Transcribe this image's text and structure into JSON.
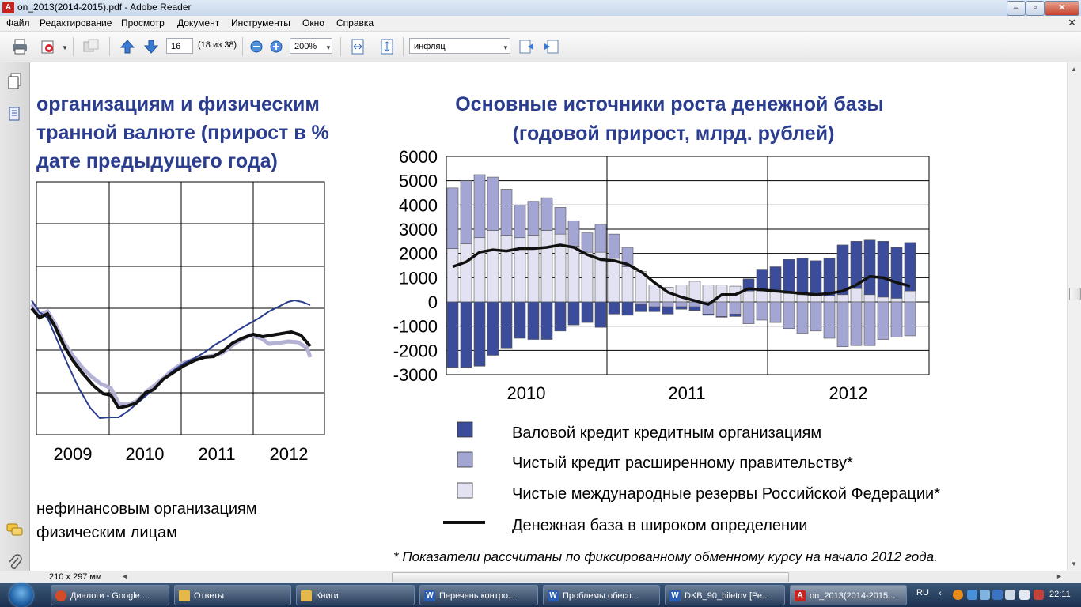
{
  "window": {
    "title": "on_2013(2014-2015).pdf - Adobe Reader"
  },
  "menu": [
    "Файл",
    "Редактирование",
    "Просмотр",
    "Документ",
    "Инструменты",
    "Окно",
    "Справка"
  ],
  "toolbar": {
    "page_number": "16",
    "page_count": "(18 из 38)",
    "zoom": "200%",
    "search": "инфляц"
  },
  "status": {
    "page_size": "210 x 297 мм"
  },
  "left_chart": {
    "title_lines": [
      "организациям и физическим",
      "транной валюте (прирост в %",
      "дате предыдущего года)"
    ],
    "x_labels": [
      "2009",
      "2010",
      "2011",
      "2012"
    ],
    "legend": [
      "нефинансовым организациям",
      "физическим лицам"
    ]
  },
  "chart_data": {
    "type": "bar",
    "title": "Основные источники роста денежной базы",
    "subtitle": "(годовой прирост, млрд. рублей)",
    "x_tick_labels": [
      "2010",
      "2011",
      "2012"
    ],
    "y_ticks": [
      "6000",
      "5000",
      "4000",
      "3000",
      "2000",
      "1000",
      "0",
      "-1000",
      "-2000",
      "-3000"
    ],
    "ylim": [
      -3000,
      6000
    ],
    "stacked": true,
    "series": [
      {
        "name": "Валовой кредит кредитным организациям",
        "color": "#3b4d9a",
        "values": [
          -2700,
          -2700,
          -2650,
          -2200,
          -1900,
          -1500,
          -1550,
          -1550,
          -1200,
          -950,
          -850,
          -1050,
          -500,
          -550,
          -300,
          -200,
          -300,
          -100,
          -150,
          -50,
          -30,
          -100,
          500,
          900,
          1050,
          1400,
          1500,
          1400,
          1550,
          2050,
          1950,
          2250,
          2300,
          2100,
          2000
        ]
      },
      {
        "name": "Чистый кредит расширенному  правительству*",
        "color": "#a3a6d2",
        "values": [
          2500,
          2600,
          2600,
          2200,
          1900,
          1350,
          1400,
          1350,
          1100,
          1050,
          800,
          1150,
          1000,
          800,
          -100,
          -200,
          -200,
          -200,
          -200,
          -500,
          -600,
          -500,
          -900,
          -750,
          -850,
          -1100,
          -1300,
          -1200,
          -1500,
          -1850,
          -1800,
          -1800,
          -1550,
          -1450,
          -1400
        ]
      },
      {
        "name": "Чистые международные резервы Российской Федерации*",
        "color": "#e2e2f2",
        "values": [
          2200,
          2400,
          2650,
          2950,
          2750,
          2650,
          2750,
          2950,
          2800,
          2300,
          2050,
          2050,
          1800,
          1450,
          1250,
          700,
          600,
          700,
          850,
          700,
          700,
          650,
          450,
          450,
          400,
          350,
          300,
          300,
          250,
          300,
          550,
          300,
          200,
          150,
          450
        ]
      },
      {
        "name": "Денежная база в широком определении",
        "color": "#111111",
        "type": "line",
        "values": [
          1450,
          1650,
          2050,
          2150,
          2100,
          2200,
          2200,
          2250,
          2350,
          2250,
          1950,
          1750,
          1700,
          1550,
          1250,
          800,
          400,
          200,
          50,
          -100,
          300,
          300,
          550,
          500,
          450,
          400,
          350,
          300,
          350,
          450,
          700,
          1050,
          1000,
          800,
          650
        ]
      }
    ],
    "footnote": "* Показатели рассчитаны по фиксированному обменному курсу на начало 2012 года."
  },
  "taskbar": {
    "tasks": [
      {
        "label": "Диалоги - Google ...",
        "icon": "chrome-icon",
        "color": "#d44b2a"
      },
      {
        "label": "Ответы",
        "icon": "folder-icon",
        "color": "#e6b84a"
      },
      {
        "label": "Книги",
        "icon": "folder-icon",
        "color": "#e6b84a"
      },
      {
        "label": "Перечень контро...",
        "icon": "word-icon",
        "color": "#2b5db3"
      },
      {
        "label": "Проблемы обесп...",
        "icon": "word-icon",
        "color": "#2b5db3"
      },
      {
        "label": "DKB_90_biletov [Ре...",
        "icon": "word-icon",
        "color": "#2b5db3"
      },
      {
        "label": "on_2013(2014-2015...",
        "icon": "pdf-icon",
        "color": "#c8231f"
      }
    ],
    "lang": "RU",
    "clock": "22:11"
  }
}
